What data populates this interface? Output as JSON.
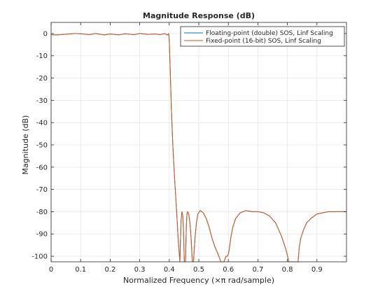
{
  "chart_data": {
    "type": "line",
    "title": "Magnitude Response (dB)",
    "xlabel": "Normalized Frequency (×π rad/sample)",
    "ylabel": "Magnitude (dB)",
    "xlim": [
      0,
      1
    ],
    "ylim": [
      -102.5,
      5
    ],
    "grid": true,
    "legend_position": "top-right",
    "x_ticks": [
      0,
      0.1,
      0.2,
      0.3,
      0.4,
      0.5,
      0.6,
      0.7,
      0.8,
      0.9
    ],
    "x_tick_labels": [
      "0",
      "0.1",
      "0.2",
      "0.3",
      "0.4",
      "0.5",
      "0.6",
      "0.7",
      "0.8",
      "0.9"
    ],
    "y_ticks": [
      0,
      -10,
      -20,
      -30,
      -40,
      -50,
      -60,
      -70,
      -80,
      -90,
      -100
    ],
    "y_tick_labels": [
      "0",
      "-10",
      "-20",
      "-30",
      "-40",
      "-50",
      "-60",
      "-70",
      "-80",
      "-90",
      "-100"
    ],
    "series": [
      {
        "name": "Floating-point (double) SOS, Linf Scaling",
        "color": "#0072bd",
        "x": [
          0,
          0.02,
          0.05,
          0.08,
          0.1,
          0.13,
          0.15,
          0.18,
          0.2,
          0.23,
          0.25,
          0.28,
          0.3,
          0.33,
          0.35,
          0.37,
          0.385,
          0.393,
          0.398,
          0.4,
          0.403,
          0.407,
          0.412,
          0.418,
          0.425,
          0.43,
          0.436,
          0.44,
          0.443,
          0.446,
          0.448,
          0.451,
          0.455,
          0.458,
          0.46,
          0.462,
          0.466,
          0.47,
          0.474,
          0.478,
          0.482,
          0.487,
          0.492,
          0.497,
          0.505,
          0.515,
          0.525,
          0.535,
          0.545,
          0.555,
          0.565,
          0.575,
          0.585,
          0.592,
          0.597,
          0.6,
          0.603,
          0.608,
          0.615,
          0.625,
          0.64,
          0.66,
          0.68,
          0.7,
          0.72,
          0.74,
          0.76,
          0.78,
          0.795,
          0.805,
          0.815,
          0.825,
          0.833,
          0.836,
          0.84,
          0.845,
          0.855,
          0.865,
          0.88,
          0.9,
          0.92,
          0.94,
          0.96,
          0.98,
          1.0
        ],
        "y": [
          -0.5,
          -0.6,
          -0.3,
          0,
          -0.1,
          -0.5,
          0,
          -0.6,
          -0.2,
          -0.6,
          -0.1,
          -0.5,
          0,
          -0.4,
          -0.2,
          -0.5,
          0,
          -0.7,
          0,
          -3,
          -15,
          -33,
          -50,
          -65,
          -80,
          -92,
          -102.5,
          -84,
          -80,
          -82,
          -88,
          -102.5,
          -102.5,
          -86,
          -81,
          -80,
          -81,
          -85,
          -92,
          -102.5,
          -102.5,
          -92,
          -85,
          -81,
          -79.5,
          -80.5,
          -83,
          -87,
          -92,
          -96,
          -99,
          -102.5,
          -102.5,
          -100,
          -100,
          -99,
          -97,
          -92,
          -87,
          -83,
          -80.5,
          -79.5,
          -80,
          -80,
          -80.5,
          -82,
          -85,
          -91,
          -97,
          -102.5,
          -102.5,
          -102.5,
          -102.5,
          -102.5,
          -96,
          -92,
          -88,
          -85,
          -83,
          -81,
          -80.5,
          -80,
          -80,
          -80,
          -80
        ]
      },
      {
        "name": "Fixed-point (16-bit) SOS, Linf Scaling",
        "color": "#d95319",
        "x": [
          0,
          0.02,
          0.05,
          0.08,
          0.1,
          0.13,
          0.15,
          0.18,
          0.2,
          0.23,
          0.25,
          0.28,
          0.3,
          0.33,
          0.35,
          0.37,
          0.385,
          0.393,
          0.398,
          0.4,
          0.403,
          0.407,
          0.412,
          0.418,
          0.425,
          0.43,
          0.436,
          0.44,
          0.443,
          0.446,
          0.448,
          0.451,
          0.455,
          0.458,
          0.46,
          0.462,
          0.466,
          0.47,
          0.474,
          0.478,
          0.482,
          0.487,
          0.492,
          0.497,
          0.505,
          0.515,
          0.525,
          0.535,
          0.545,
          0.555,
          0.565,
          0.575,
          0.585,
          0.592,
          0.597,
          0.6,
          0.603,
          0.608,
          0.615,
          0.625,
          0.64,
          0.66,
          0.68,
          0.7,
          0.72,
          0.74,
          0.76,
          0.78,
          0.795,
          0.805,
          0.815,
          0.825,
          0.833,
          0.836,
          0.84,
          0.845,
          0.855,
          0.865,
          0.88,
          0.9,
          0.92,
          0.94,
          0.96,
          0.98,
          1.0
        ],
        "y": [
          -0.5,
          -0.6,
          -0.3,
          0,
          -0.1,
          -0.5,
          0,
          -0.6,
          -0.2,
          -0.6,
          -0.1,
          -0.5,
          0,
          -0.4,
          -0.2,
          -0.5,
          0,
          -0.7,
          0,
          -3,
          -15,
          -33,
          -50,
          -65,
          -80,
          -92,
          -102.5,
          -84,
          -80,
          -82,
          -88,
          -102.5,
          -102.5,
          -86,
          -81,
          -80,
          -81,
          -85,
          -92,
          -102.5,
          -102.5,
          -92,
          -85,
          -81,
          -79.5,
          -80.5,
          -83,
          -87,
          -92,
          -96,
          -99,
          -102.5,
          -102.5,
          -100,
          -100,
          -99,
          -97,
          -92,
          -87,
          -83,
          -80.5,
          -79.5,
          -80,
          -80,
          -80.5,
          -82,
          -85,
          -91,
          -97,
          -102.5,
          -102.5,
          -102.5,
          -102.5,
          -102.5,
          -96,
          -92,
          -88,
          -85,
          -83,
          -81,
          -80.5,
          -80,
          -80,
          -80,
          -80
        ]
      }
    ]
  }
}
